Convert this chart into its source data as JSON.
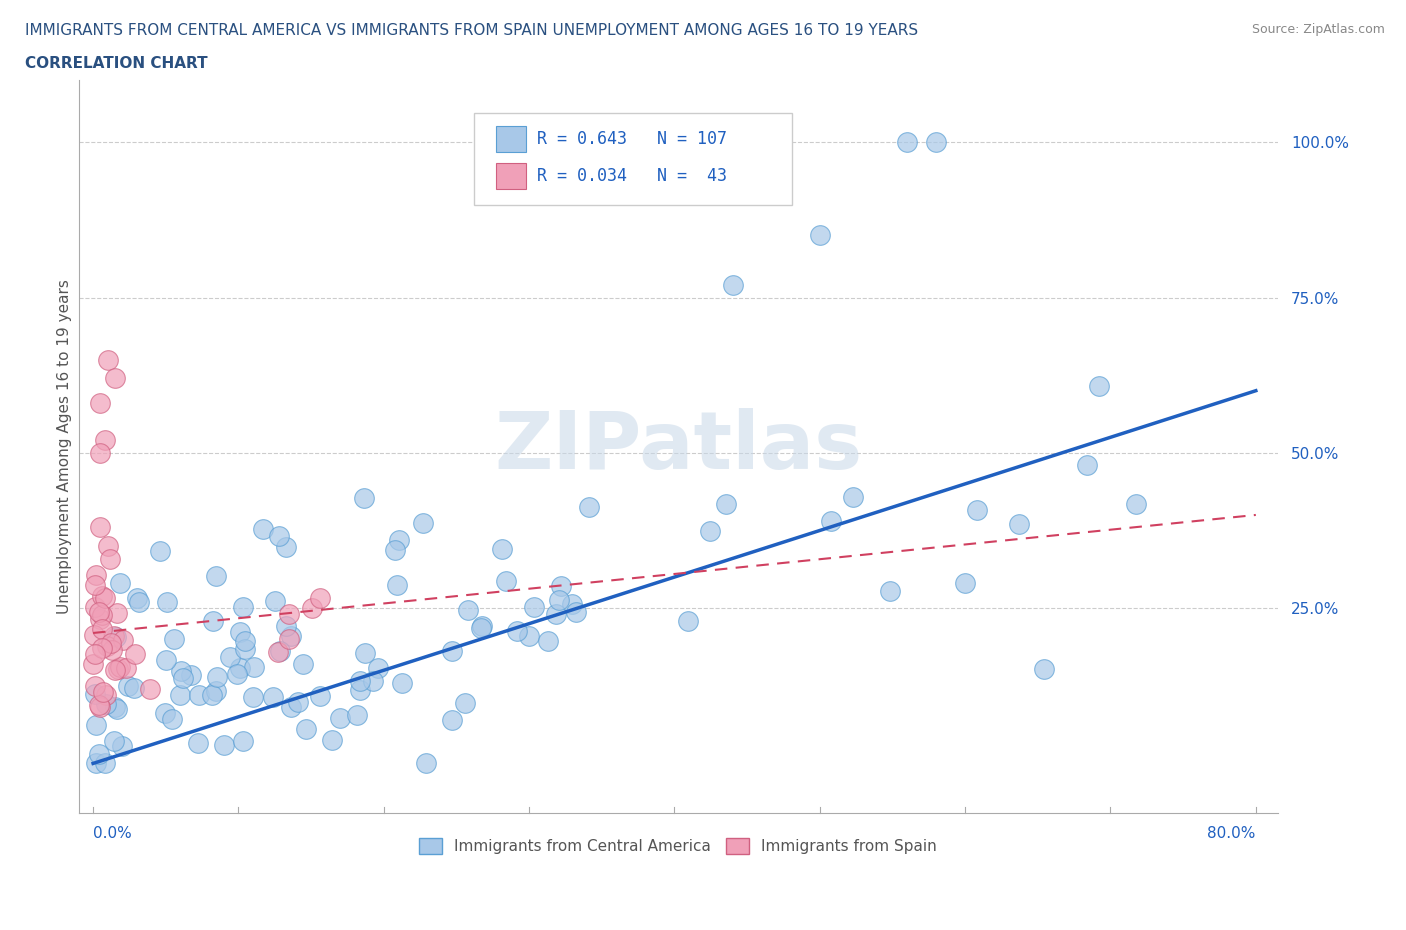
{
  "title_line1": "IMMIGRANTS FROM CENTRAL AMERICA VS IMMIGRANTS FROM SPAIN UNEMPLOYMENT AMONG AGES 16 TO 19 YEARS",
  "title_line2": "CORRELATION CHART",
  "source_text": "Source: ZipAtlas.com",
  "ylabel": "Unemployment Among Ages 16 to 19 years",
  "right_ytick_labels": [
    "25.0%",
    "50.0%",
    "75.0%",
    "100.0%"
  ],
  "right_ytick_values": [
    0.25,
    0.5,
    0.75,
    1.0
  ],
  "blue_R": 0.643,
  "blue_N": 107,
  "pink_R": 0.034,
  "pink_N": 43,
  "blue_color": "#a8c8e8",
  "blue_edge": "#5a9fd4",
  "pink_color": "#f0a0b8",
  "pink_edge": "#d06080",
  "blue_line_color": "#2060c0",
  "pink_line_color": "#d04060",
  "legend_label_blue": "Immigrants from Central America",
  "legend_label_pink": "Immigrants from Spain",
  "title_color": "#2a5080",
  "watermark_color": "#c8d8e8",
  "xmin": 0.0,
  "xmax": 0.8,
  "ymin": -0.08,
  "ymax": 1.1,
  "blue_line_x0": 0.0,
  "blue_line_y0": 0.0,
  "blue_line_x1": 0.8,
  "blue_line_y1": 0.6,
  "pink_line_x0": 0.0,
  "pink_line_y0": 0.21,
  "pink_line_x1": 0.8,
  "pink_line_y1": 0.4
}
